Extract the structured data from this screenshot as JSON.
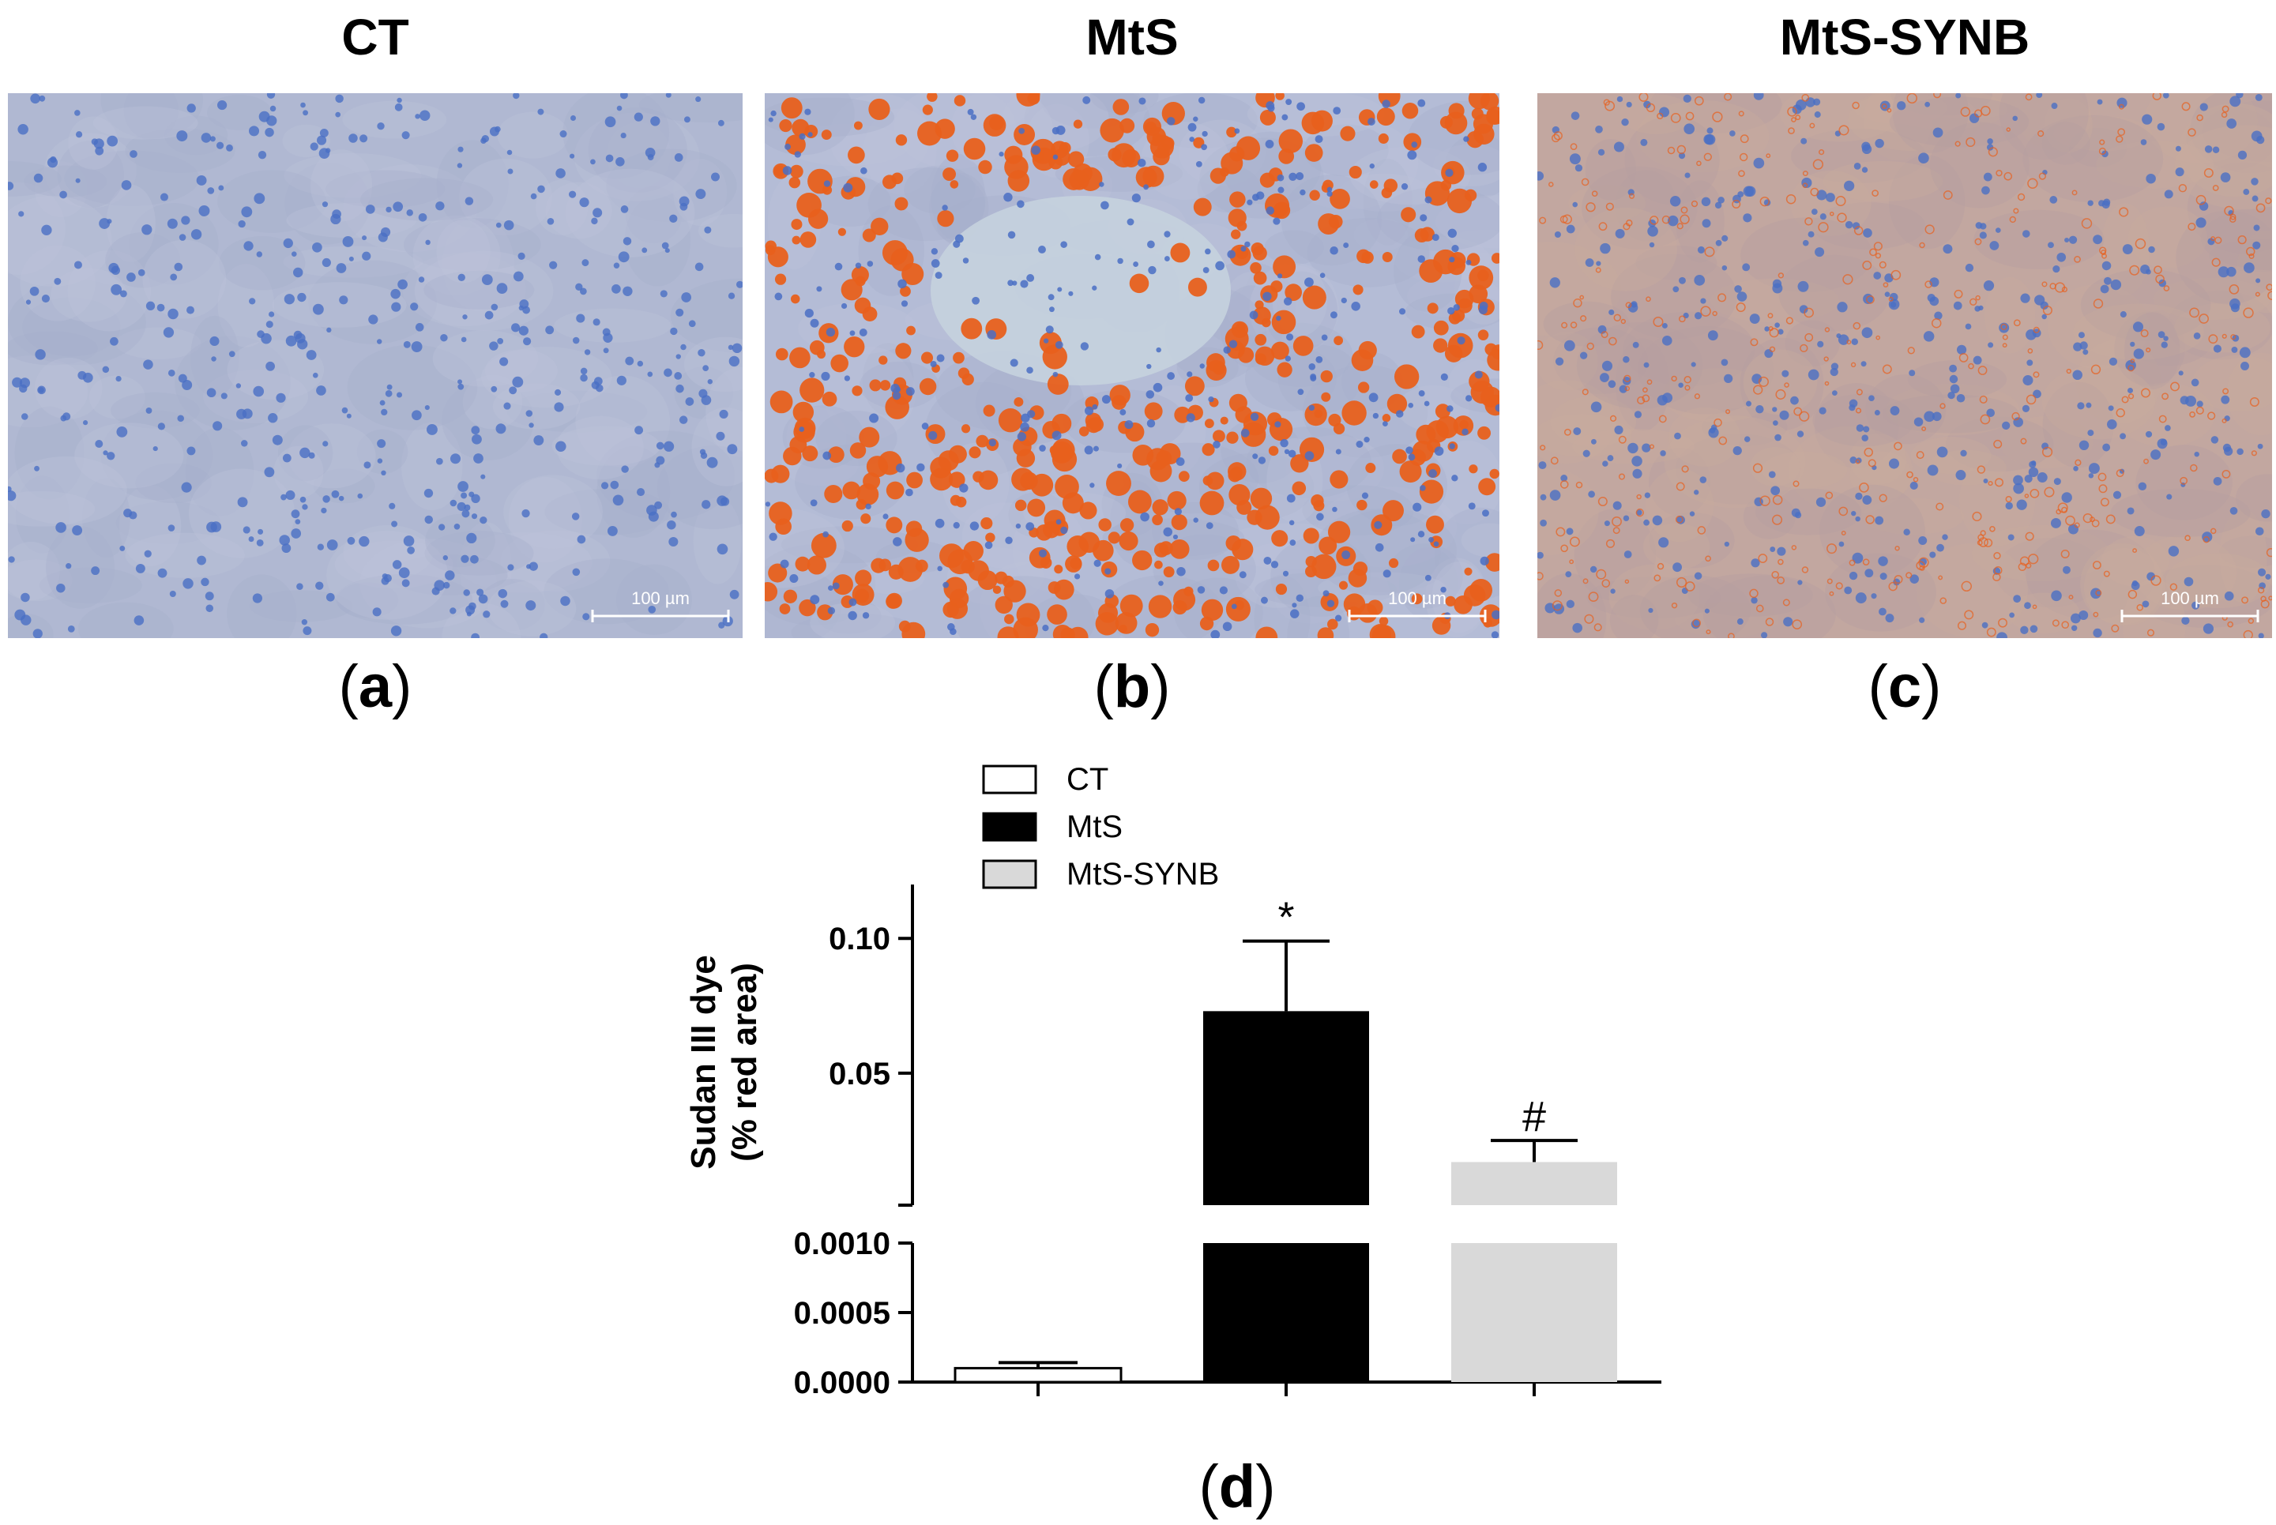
{
  "panels": [
    {
      "title": "CT",
      "letter": "a",
      "scale_bar": "100 µm"
    },
    {
      "title": "MtS",
      "letter": "b",
      "scale_bar": "100 µm"
    },
    {
      "title": "MtS-SYNB",
      "letter": "c",
      "scale_bar": "100 µm"
    }
  ],
  "chart_label": "d",
  "colors": {
    "micrograph_background": "#a9b3cd",
    "nuclei": "#4a6fc4",
    "lipid_droplets": "#e8601c",
    "bar_ct": "#ffffff",
    "bar_mts": "#000000",
    "bar_mts_synb": "#d9d9d9"
  },
  "chart_data": {
    "type": "bar",
    "categories": [
      "CT",
      "MtS",
      "MtS-SYNB"
    ],
    "values": [
      0.0001,
      0.073,
      0.017
    ],
    "errors": [
      4e-05,
      0.026,
      0.008
    ],
    "annotations": [
      "",
      "*",
      "#"
    ],
    "legend": [
      "CT",
      "MtS",
      "MtS-SYNB"
    ],
    "legend_position": "top-left",
    "ylabel_line1": "Sudan  III dye",
    "ylabel_line2": "(% red area)",
    "y_axis_broken": true,
    "ylim_lower": [
      0,
      0.001
    ],
    "ylim_upper": [
      0.001,
      0.12
    ],
    "yticks_lower": [
      "0.0000",
      "0.0005",
      "0.0010"
    ],
    "yticks_upper": [
      "0.05",
      "0.10"
    ],
    "grid": false
  }
}
